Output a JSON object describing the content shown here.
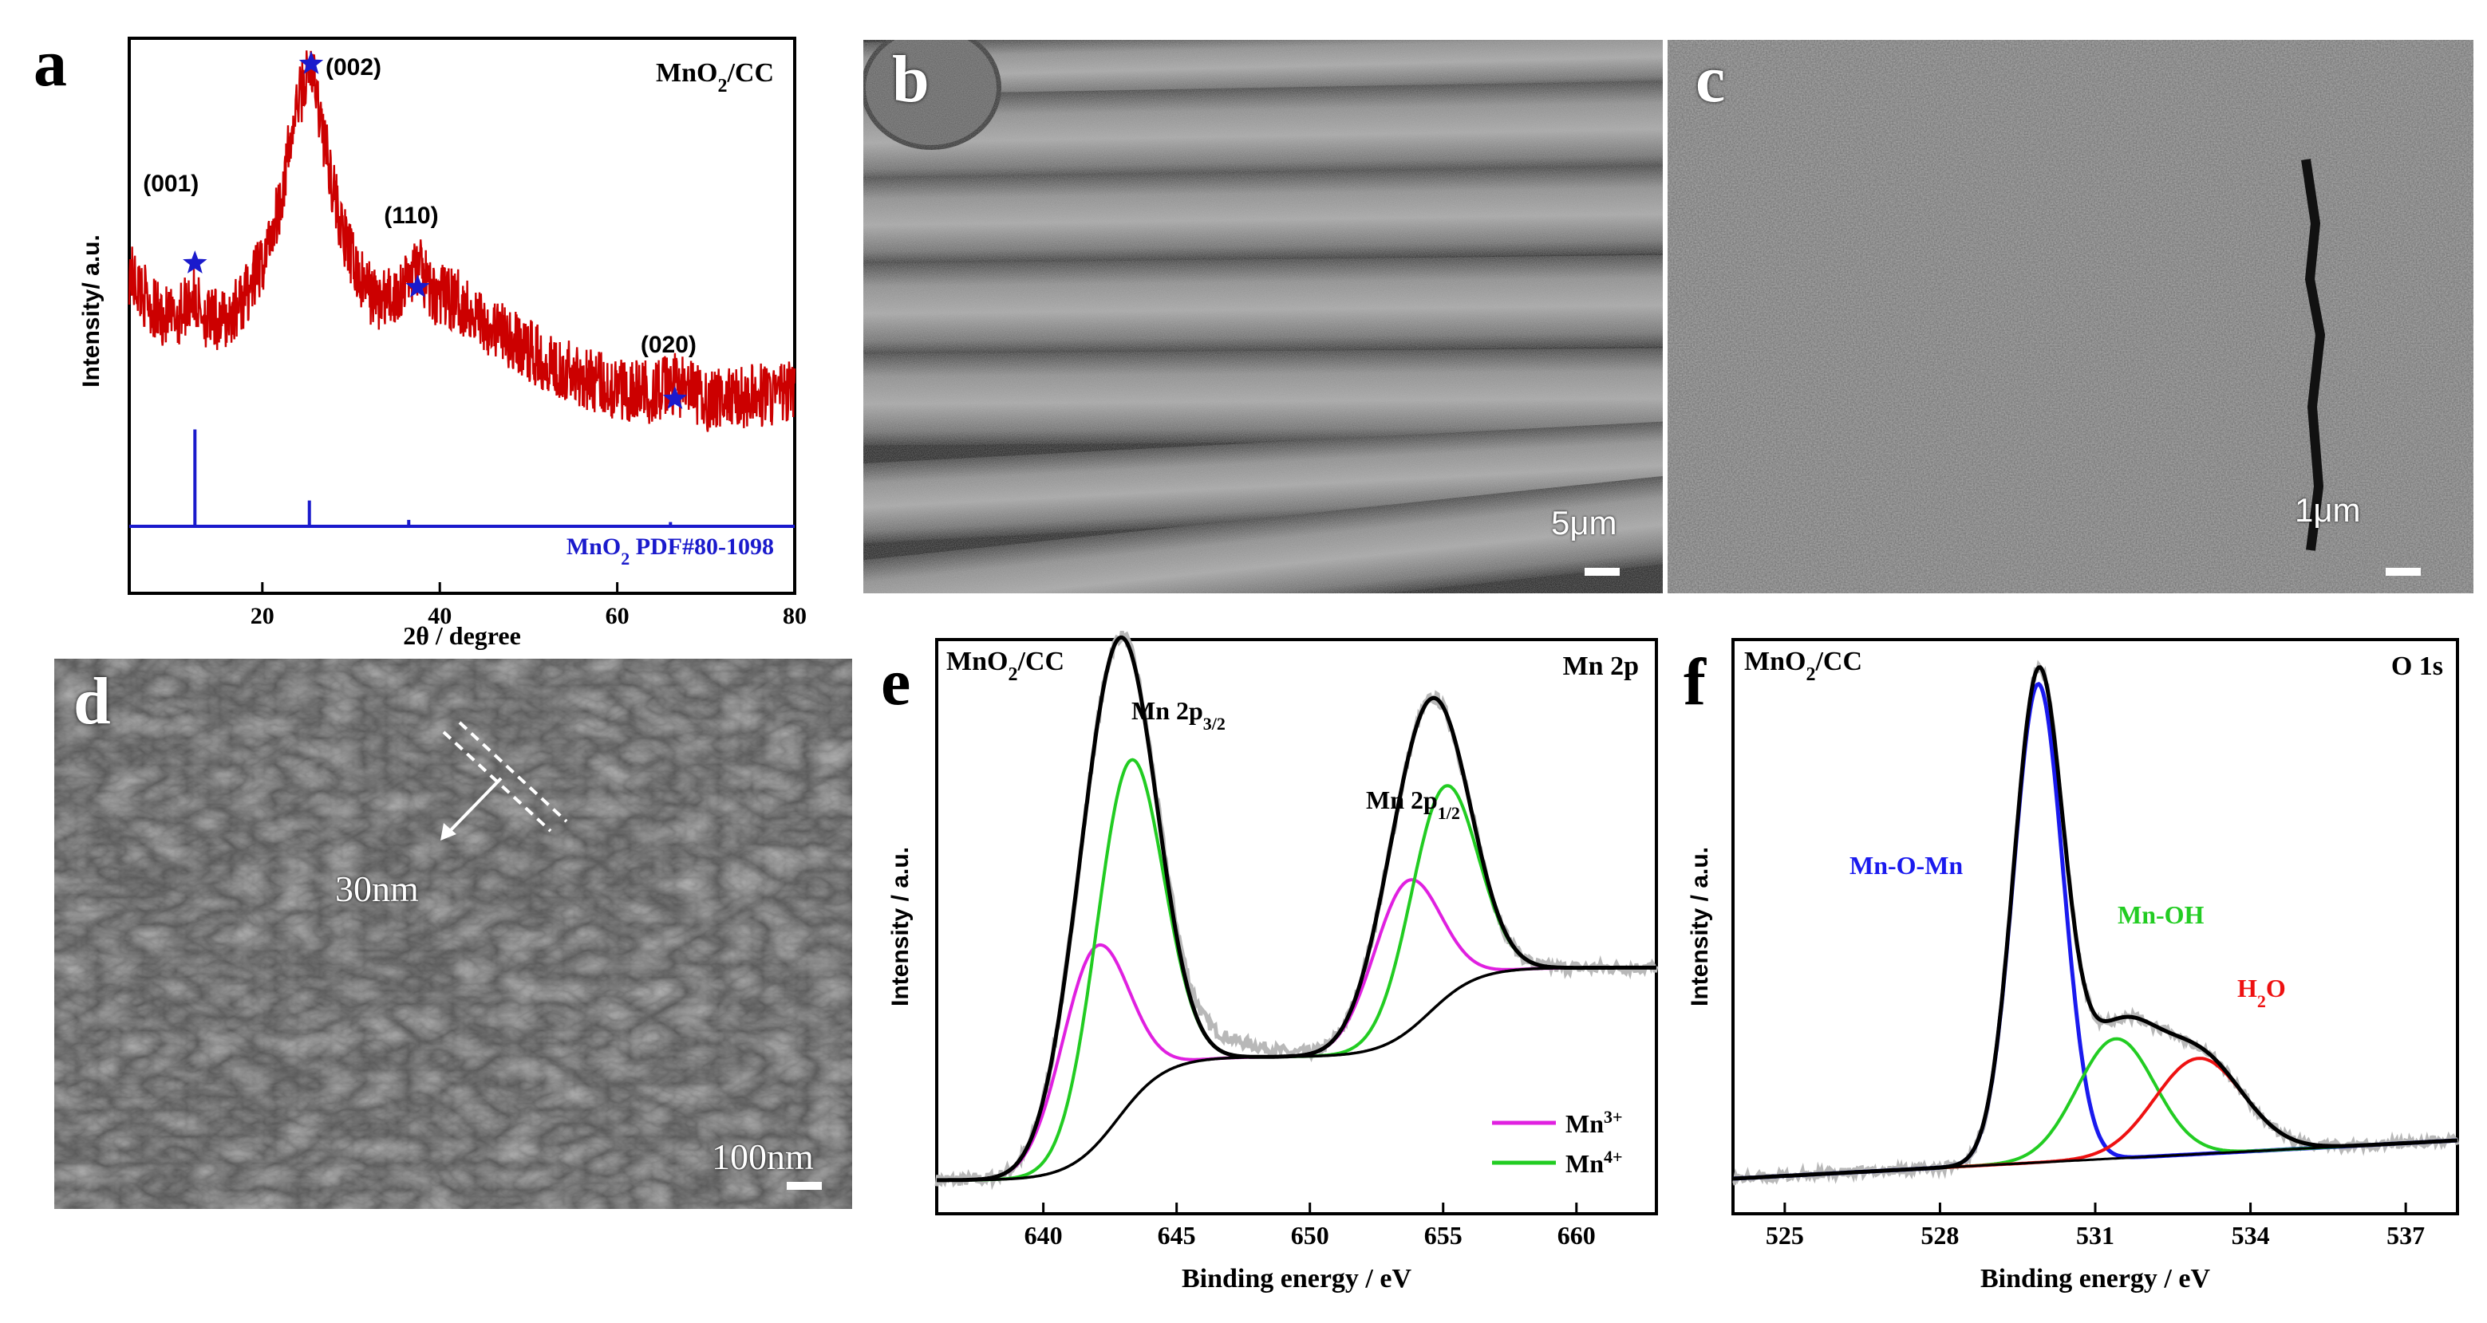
{
  "panel_letters": {
    "a": "a",
    "b": "b",
    "c": "c",
    "d": "d",
    "e": "e",
    "f": "f"
  },
  "sem": {
    "b_scale": "5μm",
    "c_scale": "1μm",
    "d_scale": "100nm",
    "d_thickness": "30nm"
  },
  "colors": {
    "xrd": "#cc0000",
    "pdf": "#1a1acc",
    "mn3": "#e020e0",
    "mn4": "#22cc22",
    "mnomn": "#1a1aee",
    "mnoh": "#22cc22",
    "h2o": "#ee1111",
    "raw": "#b8b8b8",
    "envelope": "#000000"
  },
  "chart_data": [
    {
      "id": "a",
      "type": "line",
      "sample": "MnO2/CC",
      "xlabel": "2θ / degree",
      "ylabel": "Intensity/ a.u.",
      "xlim": [
        5,
        80
      ],
      "xticks": [
        "20",
        "40",
        "60",
        "80"
      ],
      "reference": "MnO2 PDF#80-1098",
      "reference_sticks": [
        {
          "x": 12.4,
          "h": 0.45
        },
        {
          "x": 25.3,
          "h": 0.12
        },
        {
          "x": 36.5,
          "h": 0.03
        },
        {
          "x": 66.0,
          "h": 0.02
        }
      ],
      "peaks": [
        {
          "label": "(001)",
          "x": 12.4
        },
        {
          "label": "(002)",
          "x": 25.5
        },
        {
          "label": "(110)",
          "x": 37.5
        },
        {
          "label": "(020)",
          "x": 66.5
        }
      ],
      "series": [
        {
          "values_profile": [
            [
              5,
              0.62
            ],
            [
              8,
              0.52
            ],
            [
              10,
              0.5
            ],
            [
              12,
              0.56
            ],
            [
              14,
              0.5
            ],
            [
              16,
              0.5
            ],
            [
              18,
              0.56
            ],
            [
              20,
              0.64
            ],
            [
              22,
              0.8
            ],
            [
              24,
              1.05
            ],
            [
              25.5,
              1.14
            ],
            [
              27,
              0.95
            ],
            [
              29,
              0.72
            ],
            [
              31,
              0.6
            ],
            [
              33,
              0.55
            ],
            [
              35,
              0.56
            ],
            [
              37.5,
              0.64
            ],
            [
              39,
              0.57
            ],
            [
              42,
              0.55
            ],
            [
              45,
              0.5
            ],
            [
              48,
              0.45
            ],
            [
              52,
              0.4
            ],
            [
              56,
              0.36
            ],
            [
              60,
              0.33
            ],
            [
              64,
              0.32
            ],
            [
              66.5,
              0.34
            ],
            [
              70,
              0.3
            ],
            [
              75,
              0.31
            ],
            [
              80,
              0.32
            ]
          ]
        }
      ]
    },
    {
      "id": "e",
      "type": "line",
      "sample": "MnO2/CC",
      "region": "Mn 2p",
      "xlabel": "Binding energy / eV",
      "ylabel": "Intensity / a.u.",
      "xlim": [
        636,
        663
      ],
      "xticks": [
        "640",
        "645",
        "650",
        "655",
        "660"
      ],
      "peak_labels": [
        {
          "text": "Mn 2p",
          "sub": "3/2"
        },
        {
          "text": "Mn 2p",
          "sub": "1/2"
        }
      ],
      "components": [
        {
          "name": "Mn",
          "sup": "3+",
          "peaks": [
            {
              "center": 641.9,
              "amp": 0.58,
              "sigma": 1.25
            },
            {
              "center": 653.6,
              "amp": 0.44,
              "sigma": 1.25
            }
          ]
        },
        {
          "name": "Mn",
          "sup": "4+",
          "peaks": [
            {
              "center": 643.2,
              "amp": 1.0,
              "sigma": 1.25
            },
            {
              "center": 655.0,
              "amp": 0.62,
              "sigma": 1.25
            }
          ]
        }
      ],
      "background": {
        "low": 0.0,
        "mid": 0.36,
        "high": 0.62,
        "step1": 642.8,
        "step2": 654.5
      }
    },
    {
      "id": "f",
      "type": "line",
      "sample": "MnO2/CC",
      "region": "O 1s",
      "xlabel": "Binding energy / eV",
      "ylabel": "Intensity / a.u.",
      "xlim": [
        524,
        538
      ],
      "xticks": [
        "525",
        "528",
        "531",
        "534",
        "537"
      ],
      "components": [
        {
          "name": "Mn-O-Mn",
          "center": 529.9,
          "amp": 1.0,
          "sigma": 0.48
        },
        {
          "name": "Mn-OH",
          "center": 531.4,
          "amp": 0.25,
          "sigma": 0.75
        },
        {
          "name": "H2O",
          "name_base": "H",
          "name_sub": "2",
          "name_tail": "O",
          "center": 533.0,
          "amp": 0.2,
          "sigma": 0.85
        }
      ],
      "background": {
        "start": 0.02,
        "end": 0.1
      }
    }
  ]
}
